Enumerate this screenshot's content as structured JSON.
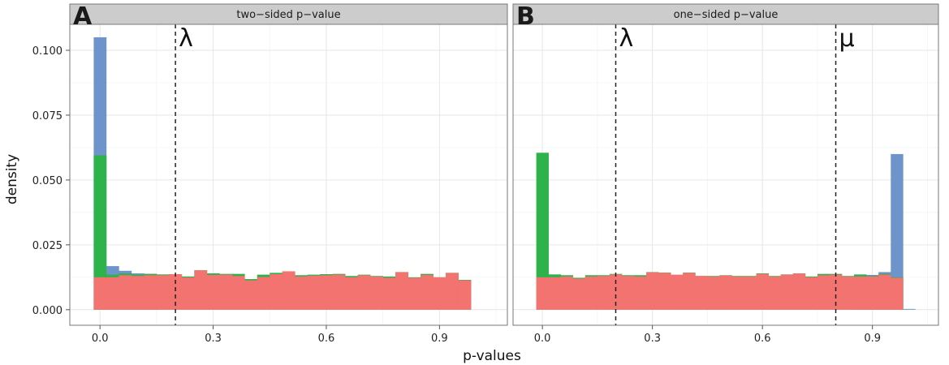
{
  "chart_data": {
    "type": "histogram",
    "xlabel": "p-values",
    "ylabel": "density",
    "xlim": [
      -0.08,
      1.08
    ],
    "ylim": [
      -0.006,
      0.11
    ],
    "x_ticks": [
      0.0,
      0.3,
      0.6,
      0.9
    ],
    "x_tick_labels": [
      "0.0",
      "0.3",
      "0.6",
      "0.9"
    ],
    "y_ticks": [
      0.0,
      0.025,
      0.05,
      0.075,
      0.1
    ],
    "y_tick_labels": [
      "0.000",
      "0.025",
      "0.050",
      "0.075",
      "0.100"
    ],
    "grid": true,
    "bin_width": 0.0333,
    "colors": {
      "red": "#F27370",
      "green": "#2EB24A",
      "blue": "#6D95CB"
    },
    "panels": [
      {
        "letter": "A",
        "strip_label": "two−sided p−value",
        "vlines": [
          {
            "x": 0.2,
            "label": "λ"
          }
        ],
        "layers": [
          {
            "color": "blue",
            "x": [
              0.0,
              0.0333,
              0.0667,
              0.1,
              0.1333
            ],
            "values": [
              0.105,
              0.0168,
              0.015,
              0.014,
              0.0138
            ]
          },
          {
            "color": "green",
            "x": [
              0.0,
              0.0333,
              0.0667,
              0.1,
              0.1333,
              0.1667,
              0.2,
              0.2333,
              0.2667,
              0.3,
              0.3333,
              0.3667,
              0.4,
              0.4333,
              0.4667,
              0.5,
              0.5333,
              0.5667,
              0.6,
              0.6333,
              0.6667,
              0.7,
              0.7333,
              0.7667,
              0.8,
              0.8333,
              0.8667,
              0.9,
              0.9333,
              0.9667
            ],
            "values": [
              0.0595,
              0.0135,
              0.014,
              0.0135,
              0.0138,
              0.0136,
              0.0137,
              0.0128,
              0.0152,
              0.014,
              0.0138,
              0.0138,
              0.0118,
              0.0135,
              0.0142,
              0.0148,
              0.0133,
              0.0135,
              0.0137,
              0.0138,
              0.013,
              0.0135,
              0.013,
              0.0128,
              0.0145,
              0.0125,
              0.0138,
              0.0125,
              0.0142,
              0.0115
            ]
          },
          {
            "color": "red",
            "x": [
              0.0,
              0.0333,
              0.0667,
              0.1,
              0.1333,
              0.1667,
              0.2,
              0.2333,
              0.2667,
              0.3,
              0.3333,
              0.3667,
              0.4,
              0.4333,
              0.4667,
              0.5,
              0.5333,
              0.5667,
              0.6,
              0.6333,
              0.6667,
              0.7,
              0.7333,
              0.7667,
              0.8,
              0.8333,
              0.8667,
              0.9,
              0.9333,
              0.9667
            ],
            "values": [
              0.0125,
              0.0125,
              0.0133,
              0.013,
              0.0133,
              0.0133,
              0.0137,
              0.0124,
              0.0152,
              0.0134,
              0.0135,
              0.013,
              0.0113,
              0.0126,
              0.0137,
              0.0148,
              0.0128,
              0.0131,
              0.0133,
              0.0135,
              0.0125,
              0.0133,
              0.0128,
              0.0123,
              0.0145,
              0.0123,
              0.0134,
              0.0125,
              0.0142,
              0.0113
            ]
          }
        ]
      },
      {
        "letter": "B",
        "strip_label": "one−sided p−value",
        "vlines": [
          {
            "x": 0.2,
            "label": "λ"
          },
          {
            "x": 0.8,
            "label": "μ"
          }
        ],
        "layers": [
          {
            "color": "blue",
            "x": [
              0.8667,
              0.9,
              0.9333,
              0.9667,
              1.0
            ],
            "values": [
              0.0136,
              0.0134,
              0.0145,
              0.06,
              0.0003
            ]
          },
          {
            "color": "green",
            "x": [
              0.0,
              0.0333,
              0.0667,
              0.1,
              0.1333,
              0.1667,
              0.2,
              0.2333,
              0.2667,
              0.3,
              0.3333,
              0.3667,
              0.4,
              0.4333,
              0.4667,
              0.5,
              0.5333,
              0.5667,
              0.6,
              0.6333,
              0.6667,
              0.7,
              0.7333,
              0.7667,
              0.8,
              0.8333,
              0.8667,
              0.9,
              0.9333,
              0.9667
            ],
            "values": [
              0.0605,
              0.0136,
              0.0133,
              0.0123,
              0.0133,
              0.0133,
              0.0138,
              0.0133,
              0.0133,
              0.0145,
              0.0143,
              0.0133,
              0.0143,
              0.013,
              0.013,
              0.0133,
              0.013,
              0.013,
              0.014,
              0.013,
              0.0136,
              0.014,
              0.0128,
              0.0138,
              0.0138,
              0.013,
              0.0135,
              0.013,
              0.0138,
              0.0125
            ]
          },
          {
            "color": "red",
            "x": [
              0.0,
              0.0333,
              0.0667,
              0.1,
              0.1333,
              0.1667,
              0.2,
              0.2333,
              0.2667,
              0.3,
              0.3333,
              0.3667,
              0.4,
              0.4333,
              0.4667,
              0.5,
              0.5333,
              0.5667,
              0.6,
              0.6333,
              0.6667,
              0.7,
              0.7333,
              0.7667,
              0.8,
              0.8333,
              0.8667,
              0.9,
              0.9333,
              0.9667
            ],
            "values": [
              0.0125,
              0.0125,
              0.0128,
              0.012,
              0.0128,
              0.013,
              0.0136,
              0.013,
              0.0128,
              0.0144,
              0.0142,
              0.0135,
              0.0142,
              0.013,
              0.0128,
              0.0132,
              0.0128,
              0.0128,
              0.0138,
              0.0128,
              0.0135,
              0.014,
              0.0125,
              0.0133,
              0.0135,
              0.0128,
              0.0128,
              0.0128,
              0.0135,
              0.0123
            ]
          }
        ]
      }
    ]
  }
}
